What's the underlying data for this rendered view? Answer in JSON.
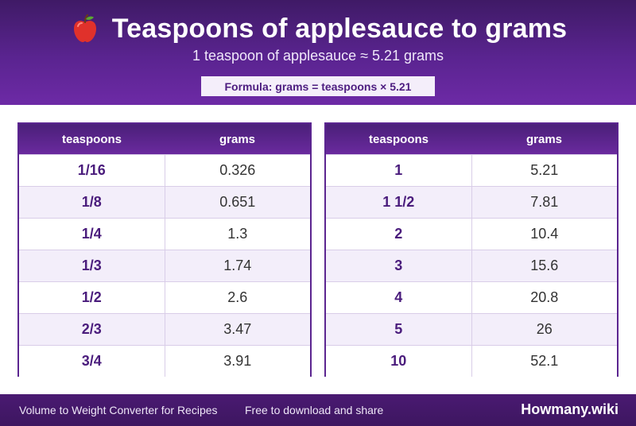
{
  "header": {
    "title": "Teaspoons of applesauce to grams",
    "subtitle": "1 teaspoon of applesauce ≈ 5.21 grams",
    "formula": "Formula: grams = teaspoons × 5.21",
    "icon": "apple-icon"
  },
  "tables": {
    "left": {
      "headers": [
        "teaspoons",
        "grams"
      ],
      "rows": [
        [
          "1/16",
          "0.326"
        ],
        [
          "1/8",
          "0.651"
        ],
        [
          "1/4",
          "1.3"
        ],
        [
          "1/3",
          "1.74"
        ],
        [
          "1/2",
          "2.6"
        ],
        [
          "2/3",
          "3.47"
        ],
        [
          "3/4",
          "3.91"
        ]
      ]
    },
    "right": {
      "headers": [
        "teaspoons",
        "grams"
      ],
      "rows": [
        [
          "1",
          "5.21"
        ],
        [
          "1 1/2",
          "7.81"
        ],
        [
          "2",
          "10.4"
        ],
        [
          "3",
          "15.6"
        ],
        [
          "4",
          "20.8"
        ],
        [
          "5",
          "26"
        ],
        [
          "10",
          "52.1"
        ]
      ]
    }
  },
  "footer": {
    "left": "Volume to Weight Converter for Recipes",
    "middle": "Free to download and share",
    "brand": "Howmany.wiki"
  },
  "colors": {
    "accent": "#5b2590",
    "header_dark": "#3f1a66",
    "row_alt": "#f3eefa"
  }
}
